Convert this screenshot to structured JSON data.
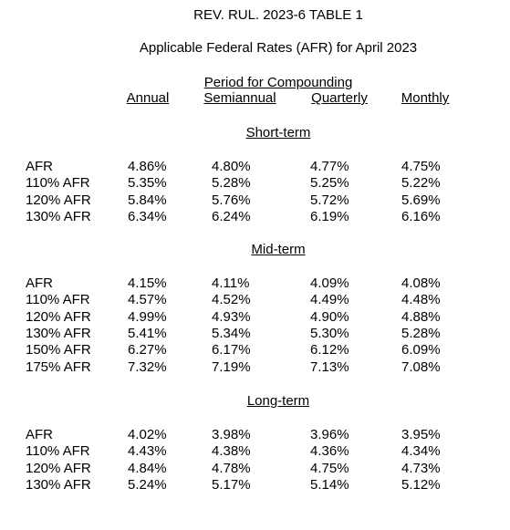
{
  "header": {
    "title": "REV. RUL. 2023-6 TABLE 1",
    "subtitle": "Applicable Federal Rates (AFR) for April 2023"
  },
  "columns": {
    "group": "Period for Compounding",
    "labels": [
      "Annual",
      "Semiannual",
      "Quarterly",
      "Monthly"
    ]
  },
  "sections": [
    {
      "title": "Short-term",
      "rows": [
        {
          "label": "AFR",
          "values": [
            "4.86%",
            "4.80%",
            "4.77%",
            "4.75%"
          ]
        },
        {
          "label": "110% AFR",
          "values": [
            "5.35%",
            "5.28%",
            "5.25%",
            "5.22%"
          ]
        },
        {
          "label": "120% AFR",
          "values": [
            "5.84%",
            "5.76%",
            "5.72%",
            "5.69%"
          ]
        },
        {
          "label": "130% AFR",
          "values": [
            "6.34%",
            "6.24%",
            "6.19%",
            "6.16%"
          ]
        }
      ]
    },
    {
      "title": "Mid-term",
      "rows": [
        {
          "label": "AFR",
          "values": [
            "4.15%",
            "4.11%",
            "4.09%",
            "4.08%"
          ]
        },
        {
          "label": "110% AFR",
          "values": [
            "4.57%",
            "4.52%",
            "4.49%",
            "4.48%"
          ]
        },
        {
          "label": "120% AFR",
          "values": [
            "4.99%",
            "4.93%",
            "4.90%",
            "4.88%"
          ]
        },
        {
          "label": "130% AFR",
          "values": [
            "5.41%",
            "5.34%",
            "5.30%",
            "5.28%"
          ]
        },
        {
          "label": "150% AFR",
          "values": [
            "6.27%",
            "6.17%",
            "6.12%",
            "6.09%"
          ]
        },
        {
          "label": "175% AFR",
          "values": [
            "7.32%",
            "7.19%",
            "7.13%",
            "7.08%"
          ]
        }
      ]
    },
    {
      "title": "Long-term",
      "rows": [
        {
          "label": "AFR",
          "values": [
            "4.02%",
            "3.98%",
            "3.96%",
            "3.95%"
          ]
        },
        {
          "label": "110% AFR",
          "values": [
            "4.43%",
            "4.38%",
            "4.36%",
            "4.34%"
          ]
        },
        {
          "label": "120% AFR",
          "values": [
            "4.84%",
            "4.78%",
            "4.75%",
            "4.73%"
          ]
        },
        {
          "label": "130% AFR",
          "values": [
            "5.24%",
            "5.17%",
            "5.14%",
            "5.12%"
          ]
        }
      ]
    }
  ]
}
